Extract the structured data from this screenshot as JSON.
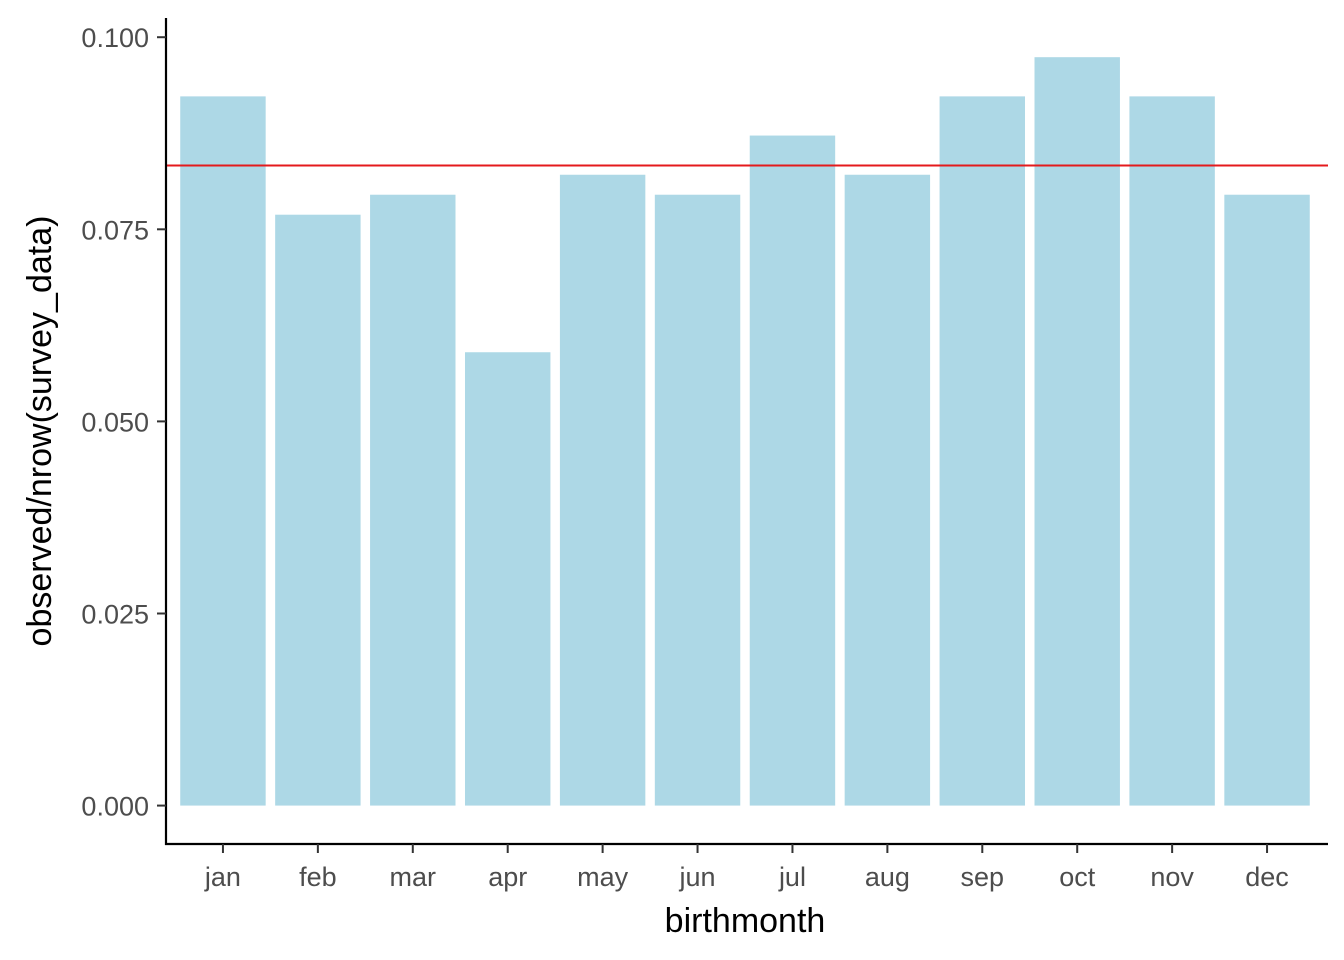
{
  "chart_data": {
    "type": "bar",
    "xlabel": "birthmonth",
    "ylabel": "observed/nrow(survey_data)",
    "categories": [
      "jan",
      "feb",
      "mar",
      "apr",
      "may",
      "jun",
      "jul",
      "aug",
      "sep",
      "oct",
      "nov",
      "dec"
    ],
    "values": [
      0.0923,
      0.0769,
      0.0795,
      0.059,
      0.0821,
      0.0795,
      0.0872,
      0.0821,
      0.0923,
      0.0974,
      0.0923,
      0.0795
    ],
    "ylim": [
      -0.005,
      0.1025
    ],
    "yticks": [
      0.0,
      0.025,
      0.05,
      0.075,
      0.1
    ],
    "ytick_labels": [
      "0.000",
      "0.025",
      "0.050",
      "0.075",
      "0.100"
    ],
    "reference_line": {
      "y": 0.0833,
      "color": "#e41a1c"
    },
    "bar_color": "#add8e6",
    "grid": false,
    "legend": "none"
  }
}
